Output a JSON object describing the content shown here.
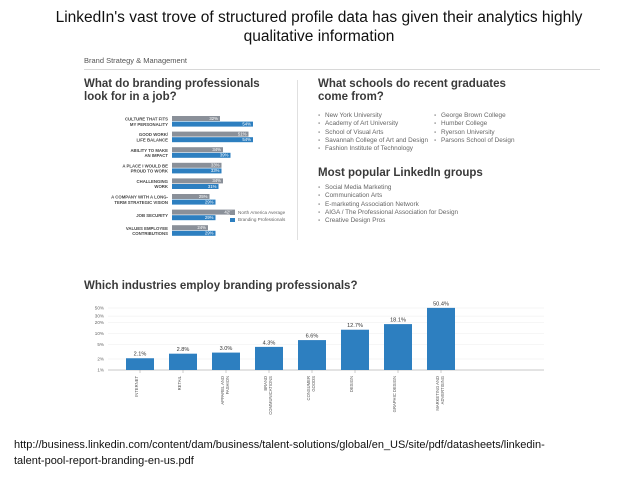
{
  "slide": {
    "title_line1": "LinkedIn's vast trove of structured profile data has given their analytics highly",
    "title_line2": "qualitative information",
    "source_line1": "http://business.linkedin.com/content/dam/business/talent-solutions/global/en_US/site/pdf/datasheets/linkedin-",
    "source_line2": "talent-pool-report-branding-en-us.pdf"
  },
  "report": {
    "header": "Brand Strategy & Management",
    "job_title_line1": "What do branding professionals",
    "job_title_line2": "look for in a job?",
    "schools_title_line1": "What schools do recent graduates",
    "schools_title_line2": "come from?",
    "groups_title": "Most popular LinkedIn groups",
    "industry_title": "Which industries employ branding professionals?",
    "schools_left": [
      "New York University",
      "Academy of Art University",
      "School of Visual Arts",
      "Savannah College of Art and Design",
      "Fashion Institute of Technology"
    ],
    "schools_right": [
      "George Brown College",
      "Humber College",
      "Ryerson University",
      "Parsons School of Design"
    ],
    "groups": [
      "Social Media Marketing",
      "Communication Arts",
      "E-marketing Association Network",
      "AIGA / The Professional Association for Design",
      "Creative Design Pros"
    ]
  },
  "chart_data": [
    {
      "type": "bar",
      "orientation": "horizontal",
      "categories": [
        [
          "CULTURE THAT FITS",
          "MY PERSONALITY"
        ],
        [
          "GOOD WORK/",
          "LIFE BALANCE"
        ],
        [
          "ABILITY TO MAKE",
          "AN IMPACT"
        ],
        [
          "A PLACE I WOULD BE",
          "PROUD TO WORK"
        ],
        [
          "CHALLENGING",
          "WORK"
        ],
        [
          "A COMPANY WITH A LONG-",
          "TERM STRATEGIC VISION"
        ],
        [
          "JOB SECURITY"
        ],
        [
          "VALUES EMPLOYEE",
          "CONTRIBUTIONS"
        ]
      ],
      "series": [
        {
          "name": "North America Average",
          "color": "#8a9099",
          "values": [
            32,
            51,
            34,
            33,
            34,
            25,
            42,
            24
          ],
          "labels": [
            "32%",
            "51%",
            "34%",
            "33%",
            "34%",
            "25%",
            "42%",
            "24%"
          ]
        },
        {
          "name": "Branding Professionals",
          "color": "#2d7fc0",
          "values": [
            54,
            54,
            39,
            33,
            31,
            29,
            29,
            29
          ],
          "labels": [
            "54%",
            "54%",
            "39%",
            "33%",
            "31%",
            "29%",
            "29%",
            "29%"
          ]
        }
      ],
      "xlim": [
        0,
        60
      ]
    },
    {
      "type": "bar",
      "categories": [
        "INTERNET",
        "RETAIL",
        "APPAREL AND FASHION",
        "BRAND COMMUNICATIONS",
        "CONSUMER GOODS",
        "DESIGN",
        "GRAPHIC DESIGN",
        "MARKETING AND ADVERTISING"
      ],
      "category_lines": [
        [
          "INTERNET"
        ],
        [
          "RETAIL"
        ],
        [
          "APPAREL AND",
          "FASHION"
        ],
        [
          "BRAND",
          "COMMUNICATIONS"
        ],
        [
          "CONSUMER",
          "GOODS"
        ],
        [
          "DESIGN"
        ],
        [
          "GRAPHIC DESIGN"
        ],
        [
          "MARKETING AND",
          "ADVERTISING"
        ]
      ],
      "values": [
        2.1,
        2.8,
        3.0,
        4.3,
        6.6,
        12.7,
        18.1,
        50.4
      ],
      "labels": [
        "2.1%",
        "2.8%",
        "3.0%",
        "4.3%",
        "6.6%",
        "12.7%",
        "18.1%",
        "50.4%"
      ],
      "yticks": [
        1,
        2,
        5,
        10,
        20,
        30,
        50
      ],
      "ytick_labels": [
        "1%",
        "2%",
        "5%",
        "10%",
        "20%",
        "30%",
        "50%"
      ],
      "yscale": "log",
      "ylim": [
        1,
        50
      ],
      "color": "#2d7fc0"
    }
  ]
}
